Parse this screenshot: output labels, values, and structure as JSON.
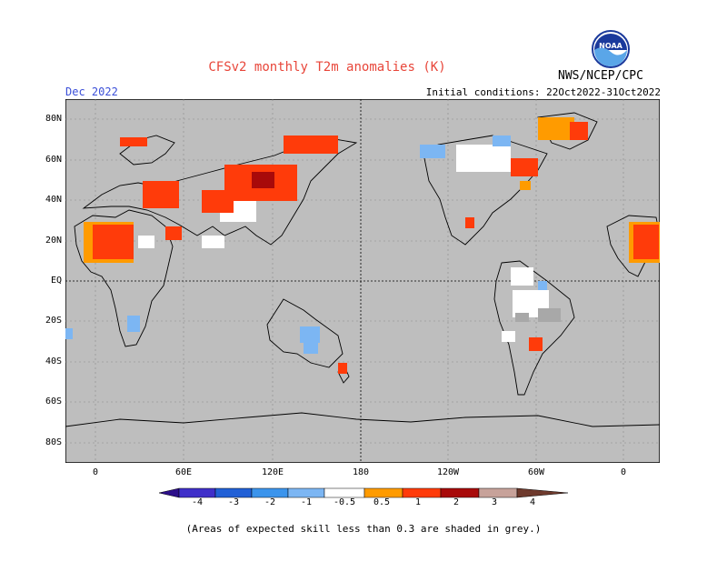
{
  "header": {
    "title": "CFSv2 monthly T2m anomalies (K)",
    "month": "Dec 2022",
    "initial_conditions": "Initial conditions: 22Oct2022-31Oct2022",
    "organization": "NWS/NCEP/CPC",
    "logo_text": "NOAA"
  },
  "axes": {
    "lat_labels": [
      "80N",
      "60N",
      "40N",
      "20N",
      "EQ",
      "20S",
      "40S",
      "60S",
      "80S"
    ],
    "lon_labels": [
      "0",
      "60E",
      "120E",
      "180",
      "120W",
      "60W",
      "0"
    ]
  },
  "colorbar": {
    "labels": [
      "-4",
      "-3",
      "-2",
      "-1",
      "-0.5",
      "0.5",
      "1",
      "2",
      "3",
      "4"
    ],
    "colors": {
      "below_min": "#2d0f8a",
      "bin_m4_m3": "#3f2fc9",
      "bin_m3_m2": "#2160d6",
      "bin_m2_m1": "#3b94ec",
      "bin_m1_m05": "#7cb6f3",
      "neutral": "#ffffff",
      "bin_05_1": "#ff9b00",
      "bin_1_2": "#ff3b0a",
      "bin_2_3": "#a80a0a",
      "bin_3_4": "#c7a29a",
      "above_max": "#6e3a2d"
    }
  },
  "map_colors": {
    "ocean_grey": "#bebebe",
    "land_grey": "#bebebe",
    "coast": "#000000"
  },
  "footnote": "(Areas of expected skill less than 0.3 are shaded in grey.)"
}
